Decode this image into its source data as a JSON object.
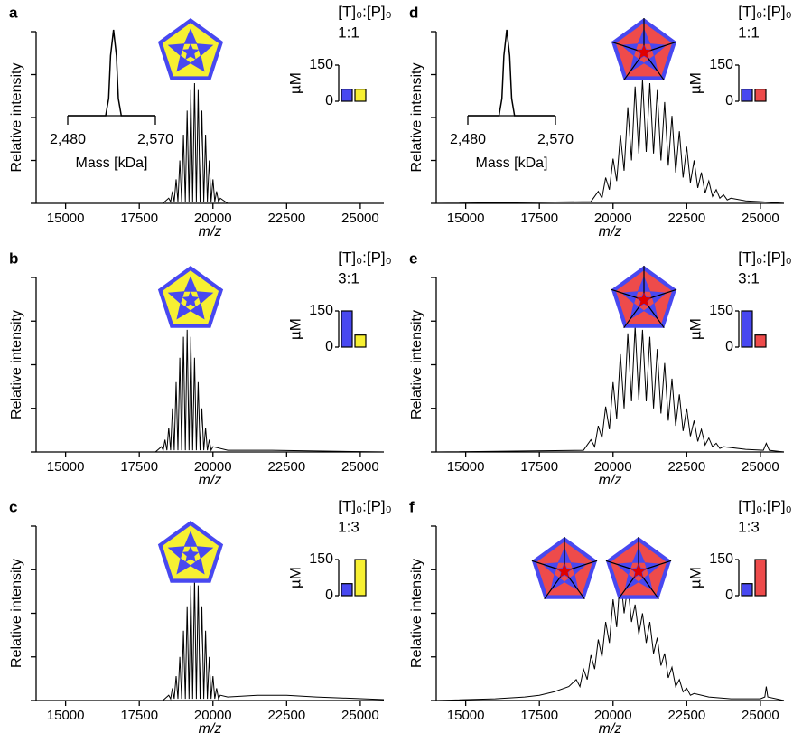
{
  "chart_data": [
    {
      "type": "line",
      "panel": "a",
      "ylabel": "Relative intensity",
      "xlabel": "m/z",
      "color": "#000000",
      "xlim": [
        14000,
        25800
      ],
      "xticks": [
        15000,
        17500,
        20000,
        22500,
        25000
      ],
      "ylim": [
        0,
        1
      ],
      "yticks": [
        0,
        0.25,
        0.5,
        0.75,
        1
      ],
      "x": [
        14000,
        18300,
        18500,
        18562.5,
        18625,
        18687.5,
        18750,
        18812.5,
        18875,
        18937.5,
        19000,
        19062.5,
        19125,
        19187.5,
        19250,
        19312.5,
        19375,
        19437.5,
        19500,
        19562.5,
        19625,
        19687.5,
        19750,
        19812.5,
        19875,
        19937.5,
        20000,
        20062.5,
        20125,
        20187.5,
        20250,
        20500,
        25800
      ],
      "values": [
        0,
        0,
        0.03,
        0.01,
        0.07,
        0.01,
        0.14,
        0.01,
        0.25,
        0.01,
        0.4,
        0.01,
        0.54,
        0.01,
        0.66,
        0.01,
        0.7,
        0.01,
        0.66,
        0.01,
        0.54,
        0.01,
        0.4,
        0.01,
        0.25,
        0.01,
        0.14,
        0.01,
        0.07,
        0.01,
        0.03,
        0,
        0
      ],
      "icons": [
        {
          "fill": "#f7f032",
          "spokes": false
        }
      ],
      "mass_inset": {
        "type": "line",
        "xlabel": "Mass [kDa]",
        "xlim": [
          2480,
          2570
        ],
        "xticks": [
          {
            "value": 2480,
            "label": "2,480"
          },
          {
            "value": 2570,
            "label": "2,570"
          }
        ],
        "ylim": [
          0,
          1
        ],
        "x": [
          2480,
          2519,
          2522,
          2524,
          2527,
          2530,
          2532,
          2535,
          2570
        ],
        "values": [
          0,
          0,
          0.2,
          0.7,
          1,
          0.7,
          0.2,
          0,
          0
        ]
      },
      "inset": {
        "type": "bar",
        "title": "[T]₀:[P]₀",
        "subtitle": "1:1",
        "ylabel": "µM",
        "values": [
          50,
          50
        ],
        "colors": [
          "#4848f0",
          "#f7f032"
        ],
        "ylim": [
          0,
          150
        ],
        "yticks": [
          0,
          150
        ]
      }
    },
    {
      "type": "line",
      "panel": "b",
      "ylabel": "Relative intensity",
      "xlabel": "m/z",
      "color": "#000000",
      "xlim": [
        14000,
        25800
      ],
      "xticks": [
        15000,
        17500,
        20000,
        22500,
        25000
      ],
      "ylim": [
        0,
        1
      ],
      "yticks": [
        0,
        0.25,
        0.5,
        0.75,
        1
      ],
      "x": [
        14000,
        18050,
        18250,
        18312.5,
        18375,
        18437.5,
        18500,
        18562.5,
        18625,
        18687.5,
        18750,
        18812.5,
        18875,
        18937.5,
        19000,
        19062.5,
        19125,
        19187.5,
        19250,
        19312.5,
        19375,
        19437.5,
        19500,
        19562.5,
        19625,
        19687.5,
        19750,
        19812.5,
        19875,
        19937.5,
        20000,
        20500,
        22000,
        25800
      ],
      "values": [
        0,
        0,
        0.03,
        0.01,
        0.07,
        0.01,
        0.14,
        0.01,
        0.25,
        0.01,
        0.4,
        0.01,
        0.54,
        0.01,
        0.66,
        0.01,
        0.7,
        0.01,
        0.66,
        0.01,
        0.54,
        0.01,
        0.4,
        0.01,
        0.25,
        0.01,
        0.14,
        0.01,
        0.07,
        0.01,
        0.03,
        0.01,
        0.01,
        0
      ],
      "icons": [
        {
          "fill": "#f7f032",
          "spokes": false
        }
      ],
      "inset": {
        "type": "bar",
        "title": "[T]₀:[P]₀",
        "subtitle": "3:1",
        "ylabel": "µM",
        "values": [
          150,
          50
        ],
        "colors": [
          "#4848f0",
          "#f7f032"
        ],
        "ylim": [
          0,
          150
        ],
        "yticks": [
          0,
          150
        ]
      }
    },
    {
      "type": "line",
      "panel": "c",
      "ylabel": "Relative intensity",
      "xlabel": "m/z",
      "color": "#000000",
      "xlim": [
        14000,
        25800
      ],
      "xticks": [
        15000,
        17500,
        20000,
        22500,
        25000
      ],
      "ylim": [
        0,
        1
      ],
      "yticks": [
        0,
        0.25,
        0.5,
        0.75,
        1
      ],
      "x": [
        14000,
        18300,
        18500,
        18562.5,
        18625,
        18687.5,
        18750,
        18812.5,
        18875,
        18937.5,
        19000,
        19062.5,
        19125,
        19187.5,
        19250,
        19312.5,
        19375,
        19437.5,
        19500,
        19562.5,
        19625,
        19687.5,
        19750,
        19812.5,
        19875,
        19937.5,
        20000,
        20062.5,
        20125,
        20187.5,
        20250,
        20500,
        21500,
        22500,
        23500,
        25800
      ],
      "values": [
        0,
        0,
        0.03,
        0.01,
        0.07,
        0.01,
        0.14,
        0.01,
        0.25,
        0.01,
        0.4,
        0.01,
        0.54,
        0.01,
        0.66,
        0.01,
        0.7,
        0.01,
        0.66,
        0.01,
        0.54,
        0.01,
        0.4,
        0.01,
        0.25,
        0.01,
        0.14,
        0.01,
        0.07,
        0.01,
        0.03,
        0.02,
        0.03,
        0.03,
        0.02,
        0.005
      ],
      "icons": [
        {
          "fill": "#f7f032",
          "spokes": false
        }
      ],
      "inset": {
        "type": "bar",
        "title": "[T]₀:[P]₀",
        "subtitle": "1:3",
        "ylabel": "µM",
        "values": [
          50,
          150
        ],
        "colors": [
          "#4848f0",
          "#f7f032"
        ],
        "ylim": [
          0,
          150
        ],
        "yticks": [
          0,
          150
        ]
      }
    },
    {
      "type": "line",
      "panel": "d",
      "ylabel": "Relative intensity",
      "xlabel": "m/z",
      "color": "#000000",
      "xlim": [
        14000,
        25800
      ],
      "xticks": [
        15000,
        17500,
        20000,
        22500,
        25000
      ],
      "ylim": [
        0,
        1
      ],
      "yticks": [
        0,
        0.25,
        0.5,
        0.75,
        1
      ],
      "x": [
        14000,
        19250,
        19500,
        19625,
        19750,
        19875,
        20000,
        20125,
        20250,
        20375,
        20500,
        20625,
        20750,
        20875,
        21000,
        21125,
        21250,
        21375,
        21500,
        21625,
        21750,
        21875,
        22000,
        22125,
        22250,
        22375,
        22500,
        22625,
        22750,
        22875,
        23000,
        23125,
        23250,
        23375,
        23500,
        23625,
        23750,
        23875,
        24000,
        24500,
        25000,
        25800
      ],
      "values": [
        0,
        0.01,
        0.07,
        0.03,
        0.15,
        0.08,
        0.26,
        0.13,
        0.4,
        0.19,
        0.56,
        0.25,
        0.68,
        0.29,
        0.72,
        0.3,
        0.7,
        0.29,
        0.66,
        0.25,
        0.59,
        0.22,
        0.51,
        0.18,
        0.42,
        0.15,
        0.33,
        0.12,
        0.25,
        0.09,
        0.18,
        0.06,
        0.13,
        0.04,
        0.08,
        0.03,
        0.05,
        0.02,
        0.03,
        0.015,
        0.01,
        0
      ],
      "icons": [
        {
          "fill": "#ee4b4b",
          "spokes": true
        }
      ],
      "mass_inset": {
        "type": "line",
        "xlabel": "Mass [kDa]",
        "xlim": [
          2480,
          2570
        ],
        "xticks": [
          {
            "value": 2480,
            "label": "2,480"
          },
          {
            "value": 2570,
            "label": "2,570"
          }
        ],
        "ylim": [
          0,
          1
        ],
        "x": [
          2480,
          2512,
          2515,
          2517,
          2520,
          2523,
          2525,
          2528,
          2570
        ],
        "values": [
          0,
          0,
          0.2,
          0.7,
          1,
          0.7,
          0.2,
          0,
          0
        ]
      },
      "inset": {
        "type": "bar",
        "title": "[T]₀:[P]₀",
        "subtitle": "1:1",
        "ylabel": "µM",
        "values": [
          50,
          50
        ],
        "colors": [
          "#4848f0",
          "#ee4b4b"
        ],
        "ylim": [
          0,
          150
        ],
        "yticks": [
          0,
          150
        ]
      }
    },
    {
      "type": "line",
      "panel": "e",
      "ylabel": "Relative intensity",
      "xlabel": "m/z",
      "color": "#000000",
      "xlim": [
        14000,
        25800
      ],
      "xticks": [
        15000,
        17500,
        20000,
        22500,
        25000
      ],
      "ylim": [
        0,
        1
      ],
      "yticks": [
        0,
        0.25,
        0.5,
        0.75,
        1
      ],
      "x": [
        14000,
        19000,
        19250,
        19375,
        19500,
        19625,
        19750,
        19875,
        20000,
        20125,
        20250,
        20375,
        20500,
        20625,
        20750,
        20875,
        21000,
        21125,
        21250,
        21375,
        21500,
        21625,
        21750,
        21875,
        22000,
        22125,
        22250,
        22375,
        22500,
        22625,
        22750,
        22875,
        23000,
        23125,
        23250,
        23375,
        23500,
        23625,
        23750,
        24500,
        25100,
        25200,
        25300,
        25800
      ],
      "values": [
        0,
        0.01,
        0.07,
        0.03,
        0.15,
        0.08,
        0.26,
        0.13,
        0.4,
        0.19,
        0.56,
        0.25,
        0.68,
        0.29,
        0.72,
        0.3,
        0.7,
        0.29,
        0.66,
        0.25,
        0.59,
        0.22,
        0.51,
        0.18,
        0.42,
        0.15,
        0.33,
        0.12,
        0.25,
        0.09,
        0.18,
        0.06,
        0.13,
        0.04,
        0.08,
        0.03,
        0.05,
        0.02,
        0.03,
        0.015,
        0.01,
        0.05,
        0.01,
        0
      ],
      "icons": [
        {
          "fill": "#ee4b4b",
          "spokes": true
        }
      ],
      "inset": {
        "type": "bar",
        "title": "[T]₀:[P]₀",
        "subtitle": "3:1",
        "ylabel": "µM",
        "values": [
          150,
          50
        ],
        "colors": [
          "#4848f0",
          "#ee4b4b"
        ],
        "ylim": [
          0,
          150
        ],
        "yticks": [
          0,
          150
        ]
      }
    },
    {
      "type": "line",
      "panel": "f",
      "ylabel": "Relative intensity",
      "xlabel": "m/z",
      "color": "#000000",
      "xlim": [
        14000,
        25800
      ],
      "xticks": [
        15000,
        17500,
        20000,
        22500,
        25000
      ],
      "ylim": [
        0,
        1
      ],
      "yticks": [
        0,
        0.25,
        0.5,
        0.75,
        1
      ],
      "x": [
        14000,
        16000,
        17000,
        17500,
        18000,
        18500,
        18750,
        18875,
        19000,
        19125,
        19250,
        19375,
        19500,
        19625,
        19750,
        19875,
        20000,
        20125,
        20250,
        20375,
        20500,
        20625,
        20750,
        20875,
        21000,
        21125,
        21250,
        21375,
        21500,
        21625,
        21750,
        21875,
        22000,
        22125,
        22250,
        22375,
        22500,
        22625,
        22750,
        23250,
        24000,
        25000,
        25150,
        25200,
        25250,
        25800
      ],
      "values": [
        0,
        0.01,
        0.02,
        0.03,
        0.05,
        0.08,
        0.12,
        0.08,
        0.18,
        0.12,
        0.26,
        0.18,
        0.35,
        0.25,
        0.45,
        0.33,
        0.58,
        0.42,
        0.72,
        0.5,
        0.66,
        0.45,
        0.55,
        0.38,
        0.5,
        0.33,
        0.45,
        0.27,
        0.36,
        0.2,
        0.27,
        0.13,
        0.19,
        0.08,
        0.12,
        0.05,
        0.07,
        0.03,
        0.04,
        0.02,
        0.01,
        0.01,
        0.02,
        0.08,
        0.02,
        0
      ],
      "icons": [
        {
          "fill": "#ee4b4b",
          "spokes": true
        },
        {
          "fill": "#ee4b4b",
          "spokes": true
        }
      ],
      "inset": {
        "type": "bar",
        "title": "[T]₀:[P]₀",
        "subtitle": "1:3",
        "ylabel": "µM",
        "values": [
          50,
          150
        ],
        "colors": [
          "#4848f0",
          "#ee4b4b"
        ],
        "ylim": [
          0,
          150
        ],
        "yticks": [
          0,
          150
        ]
      }
    }
  ]
}
